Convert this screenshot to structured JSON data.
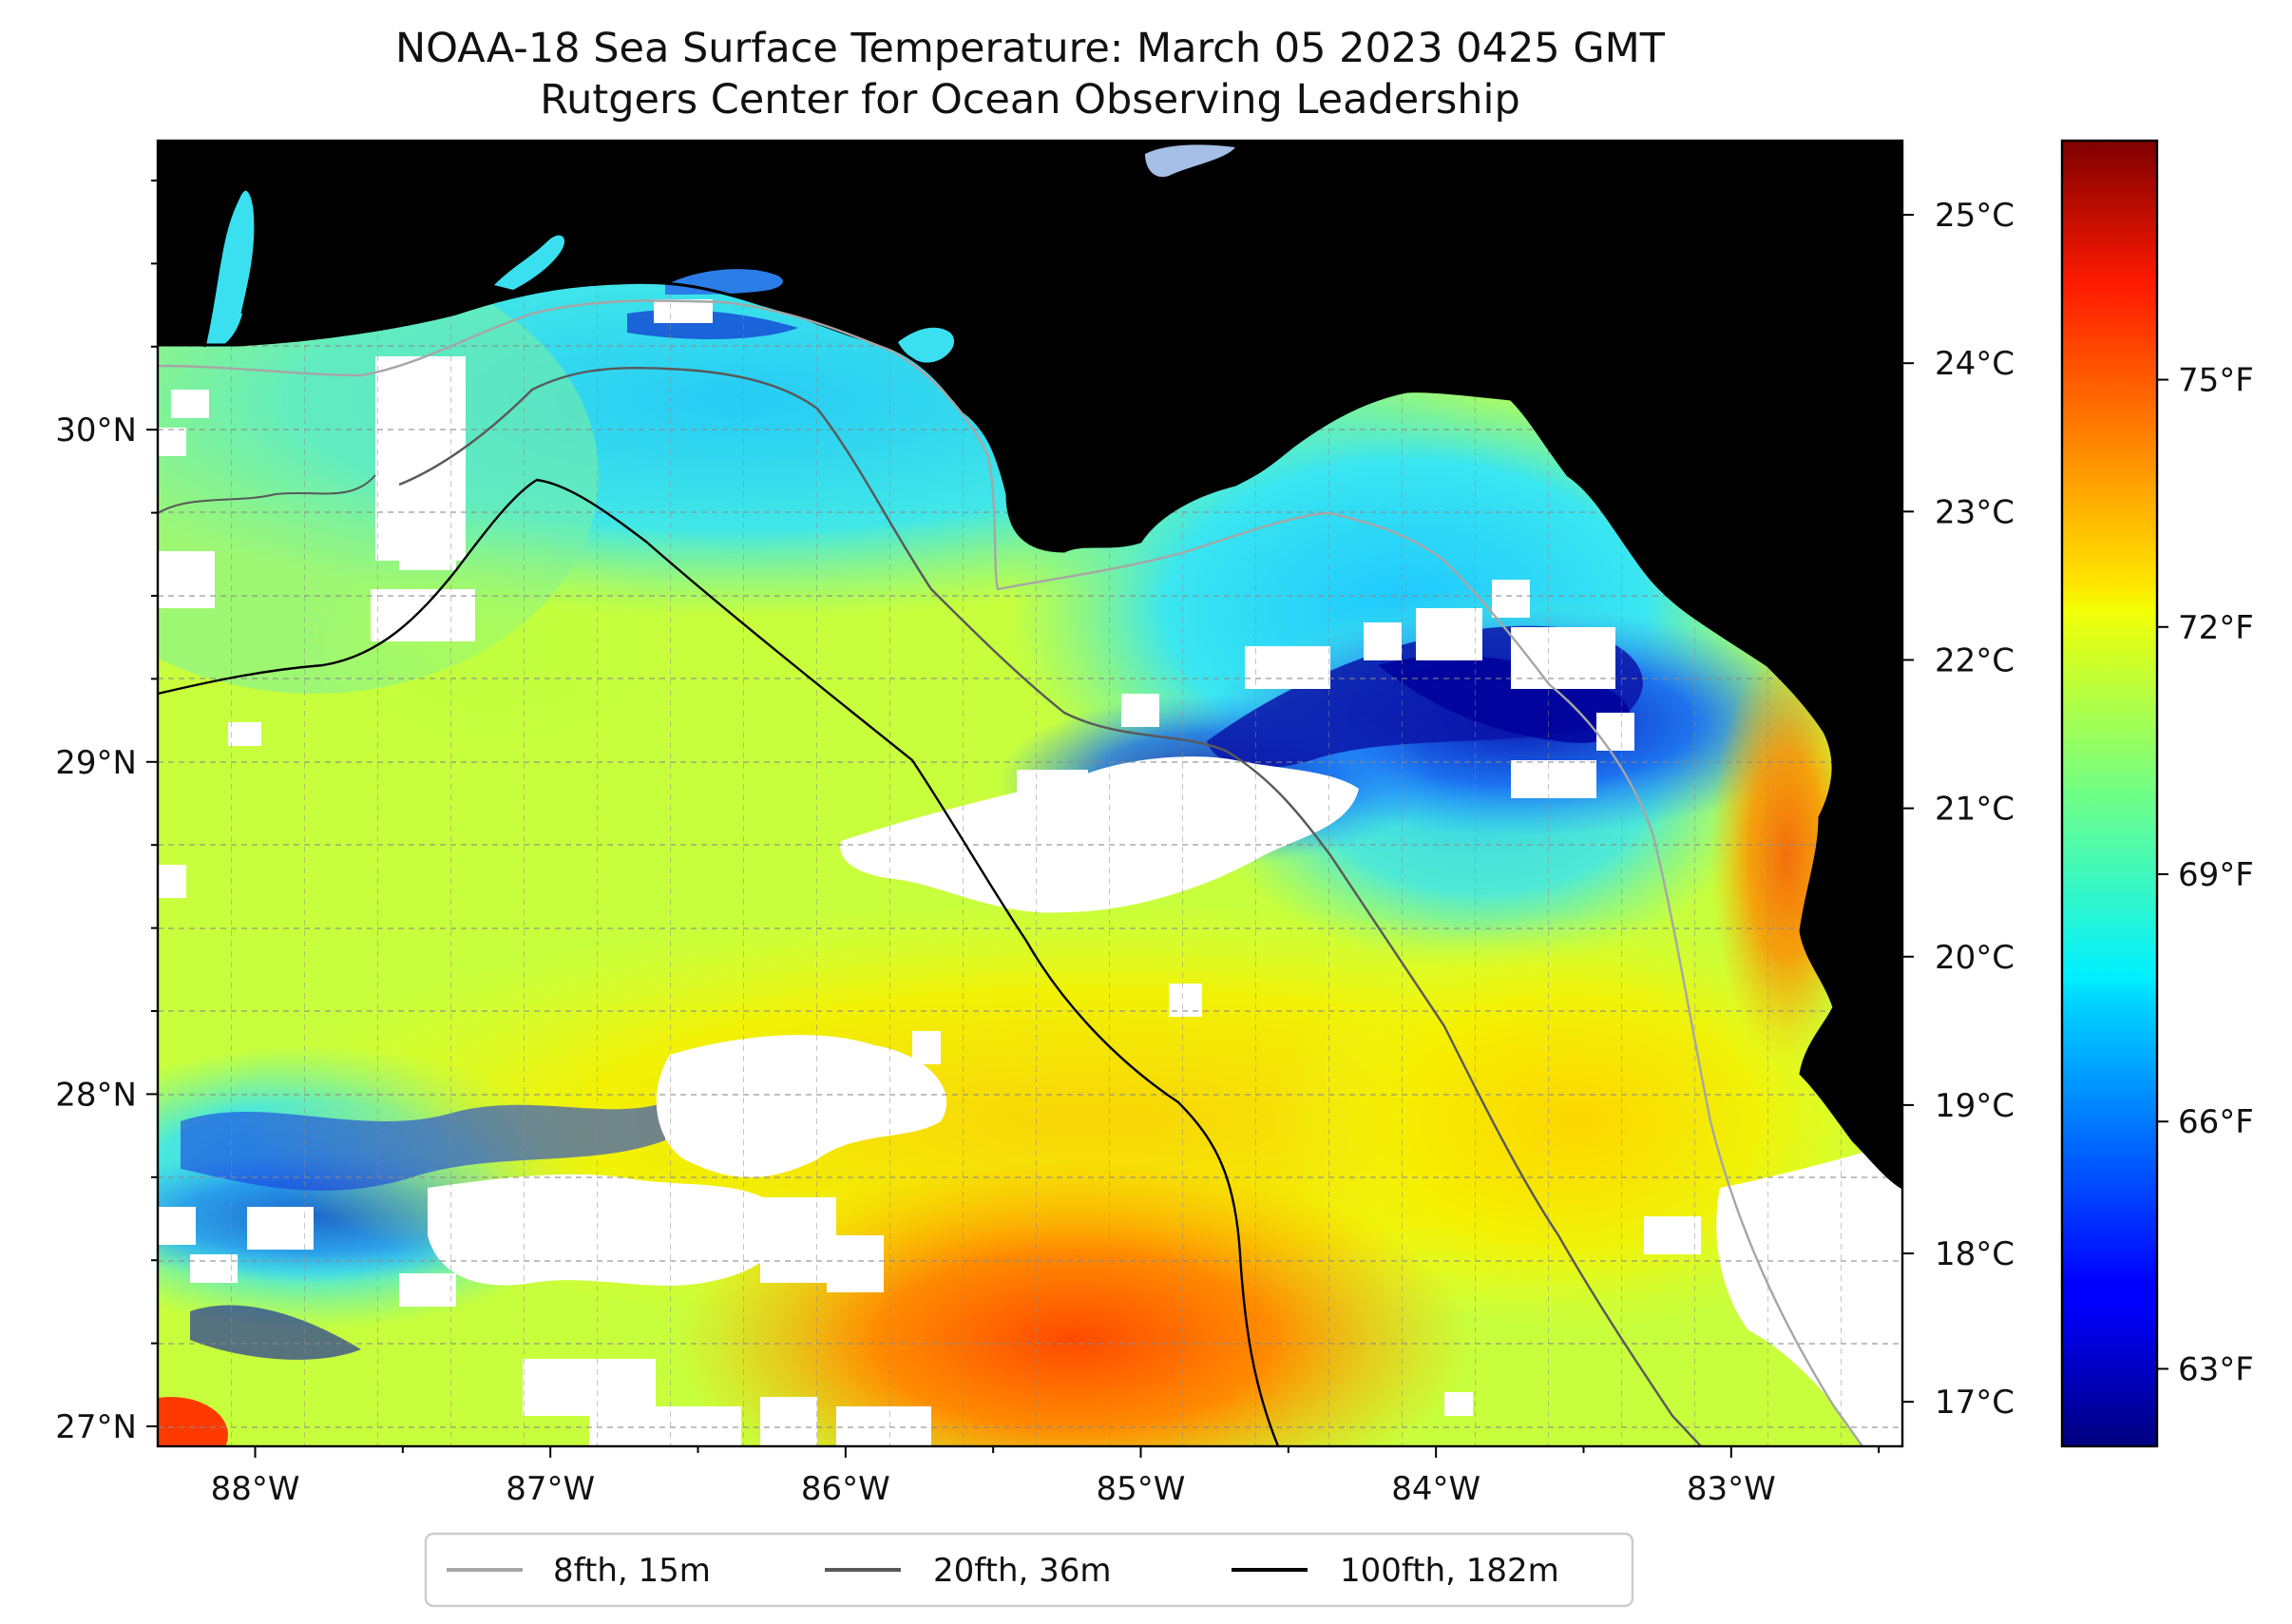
{
  "title": {
    "line1": "NOAA-18 Sea Surface Temperature: March 05 2023 0425 GMT",
    "line2": "Rutgers Center for Ocean Observing Leadership"
  },
  "map": {
    "lon_range": [
      -88.33,
      -82.42
    ],
    "lat_range": [
      26.94,
      30.87
    ],
    "lon_ticks": [
      {
        "value": -88,
        "label": "88°W"
      },
      {
        "value": -87,
        "label": "87°W"
      },
      {
        "value": -86,
        "label": "86°W"
      },
      {
        "value": -85,
        "label": "85°W"
      },
      {
        "value": -84,
        "label": "84°W"
      },
      {
        "value": -83,
        "label": "83°W"
      }
    ],
    "lat_ticks": [
      {
        "value": 30,
        "label": "30°N"
      },
      {
        "value": 29,
        "label": "29°N"
      },
      {
        "value": 28,
        "label": "28°N"
      },
      {
        "value": 27,
        "label": "27°N"
      }
    ],
    "grid": "dashed-gray, 0.25° spacing",
    "colors": {
      "land": "#d2b48c",
      "no_data": "#ffffff",
      "coastline": "#000000",
      "isobath_8fth": "#a6a6a6",
      "isobath_20fth": "#595959",
      "isobath_100fth": "#000000",
      "lake": "#a5bfe6"
    }
  },
  "legend": {
    "placement": "bottom-center",
    "items": [
      {
        "label": "8fth, 15m",
        "color": "#a6a6a6"
      },
      {
        "label": "20fth, 36m",
        "color": "#595959"
      },
      {
        "label": "100fth, 182m",
        "color": "#000000"
      }
    ]
  },
  "colorbar": {
    "colormap": "jet",
    "range_c": [
      16.7,
      25.5
    ],
    "celsius_ticks": [
      {
        "value": 17,
        "label": "17°C"
      },
      {
        "value": 18,
        "label": "18°C"
      },
      {
        "value": 19,
        "label": "19°C"
      },
      {
        "value": 20,
        "label": "20°C"
      },
      {
        "value": 21,
        "label": "21°C"
      },
      {
        "value": 22,
        "label": "22°C"
      },
      {
        "value": 23,
        "label": "23°C"
      },
      {
        "value": 24,
        "label": "24°C"
      },
      {
        "value": 25,
        "label": "25°C"
      }
    ],
    "fahrenheit_ticks": [
      {
        "value": 63,
        "label": "63°F"
      },
      {
        "value": 66,
        "label": "66°F"
      },
      {
        "value": 69,
        "label": "69°F"
      },
      {
        "value": 72,
        "label": "72°F"
      },
      {
        "value": 75,
        "label": "75°F"
      }
    ]
  }
}
